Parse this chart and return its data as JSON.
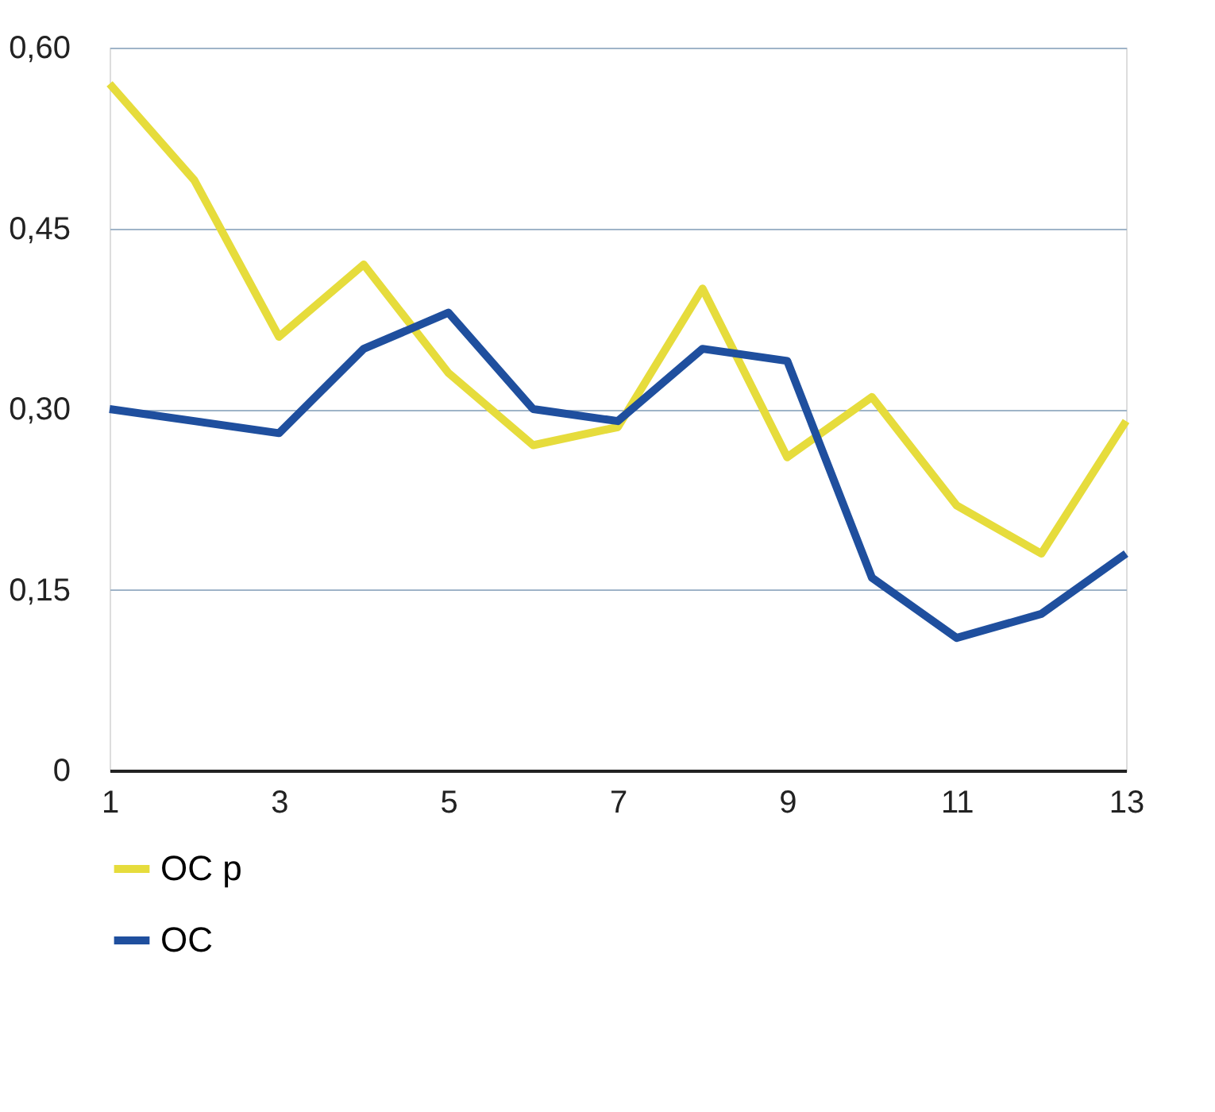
{
  "chart_data": {
    "type": "line",
    "x": [
      1,
      2,
      3,
      4,
      5,
      6,
      7,
      8,
      9,
      10,
      11,
      12,
      13
    ],
    "series": [
      {
        "name": "OC p",
        "color": "#e6dc3c",
        "values": [
          0.57,
          0.49,
          0.36,
          0.42,
          0.33,
          0.27,
          0.285,
          0.4,
          0.26,
          0.31,
          0.22,
          0.18,
          0.29
        ]
      },
      {
        "name": "OC",
        "color": "#1f4f9e",
        "values": [
          0.3,
          0.29,
          0.28,
          0.35,
          0.38,
          0.3,
          0.29,
          0.35,
          0.34,
          0.16,
          0.11,
          0.13,
          0.18
        ]
      }
    ],
    "xlim": [
      1,
      13
    ],
    "xticks": [
      1,
      3,
      5,
      7,
      9,
      11,
      13
    ],
    "ylim": [
      0,
      0.6
    ],
    "yticks": [
      {
        "value": 0,
        "label": "0"
      },
      {
        "value": 0.15,
        "label": "0,15"
      },
      {
        "value": 0.3,
        "label": "0,30"
      },
      {
        "value": 0.45,
        "label": "0,45"
      },
      {
        "value": 0.6,
        "label": "0,60"
      }
    ],
    "grid": "y",
    "legend": "bottom",
    "marker": "none",
    "line_style": "solid"
  }
}
